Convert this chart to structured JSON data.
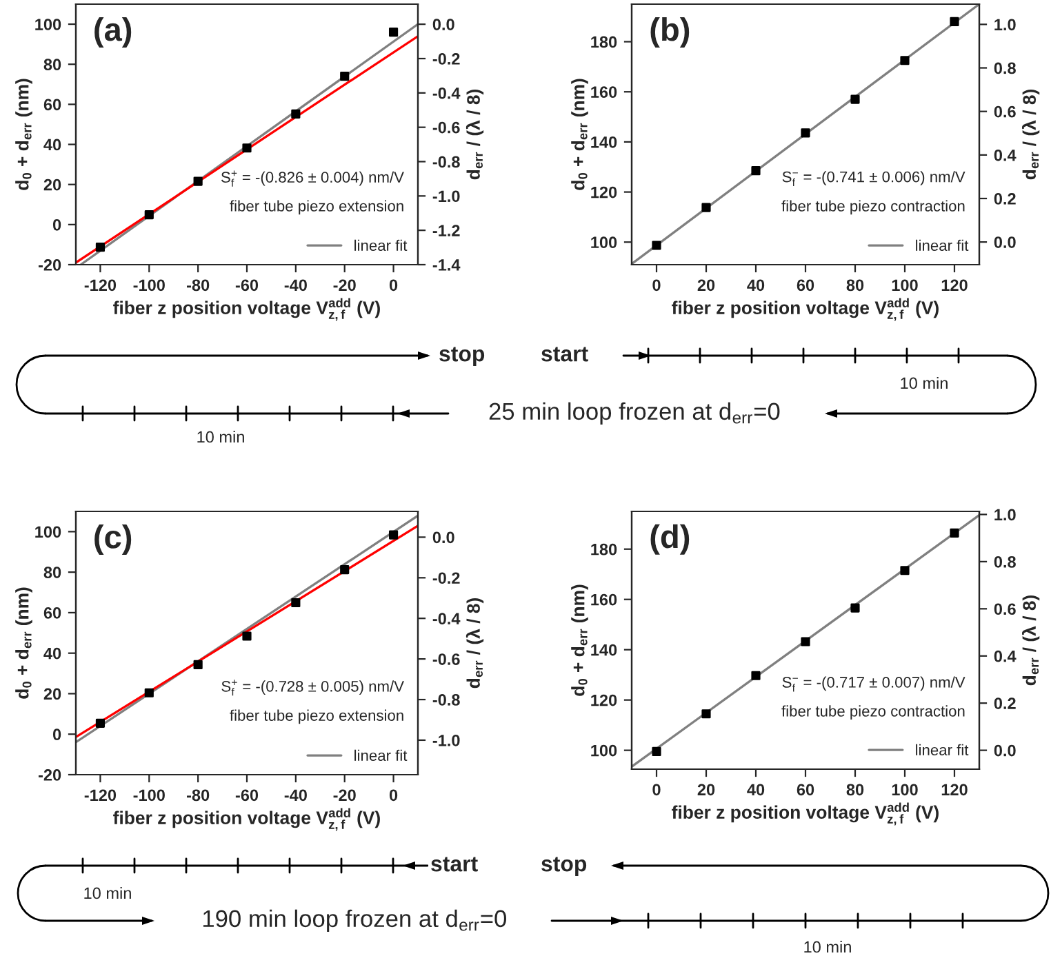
{
  "chart_data": [
    {
      "type": "scatter",
      "xlabel": "fiber z position voltage V$^{add}$$_{z,f}$ (V)",
      "ylabel": "d$_{0}$ + d$_{err}$ (nm)",
      "y2label": "d$_{err}$ / (λ / 8)",
      "annotations": [
        "(a)",
        "S$^{+}$$_{f}$ = -(0.826 ± 0.004) nm/V",
        "fiber tube piezo extension"
      ],
      "xlim": [
        -130,
        10
      ],
      "xticks": [
        -120,
        -100,
        -80,
        -60,
        -40,
        -20,
        0
      ],
      "ylim": [
        -20,
        110
      ],
      "yticks": [
        -20,
        0,
        20,
        40,
        60,
        80,
        100
      ],
      "y2lim": [
        -1.4,
        0.117
      ],
      "y2ticks": [
        -1.4,
        -1.2,
        {
          "value": -1,
          "label": "-1.0"
        },
        -0.8,
        -0.6,
        -0.4,
        -0.2,
        {
          "value": 0,
          "label": "0.0"
        }
      ],
      "legend": "bottom right",
      "series": [
        {
          "type": "scatter",
          "marker": "square",
          "color": "#000000",
          "x": [
            -120,
            -100,
            -80,
            -60,
            -40,
            -20,
            0
          ],
          "values": [
            -11.3,
            4.9,
            21.6,
            38.2,
            55.2,
            74,
            96
          ]
        },
        {
          "name": "linear fit",
          "type": "line",
          "color": "#808080",
          "x": [
            -128,
            10
          ],
          "values": [
            -20,
            100
          ]
        },
        {
          "type": "line",
          "color": "#ff0000",
          "x": [
            -130,
            10
          ],
          "values": [
            -19,
            94
          ]
        }
      ]
    },
    {
      "type": "scatter",
      "xlabel": "fiber z position voltage V$^{add}$$_{z,f}$ (V)",
      "ylabel": "d$_{0}$ + d$_{err}$ (nm)",
      "y2label": "d$_{err}$ / (λ / 8)",
      "annotations": [
        "(b)",
        "S$^{−}$$_{f}$ = -(0.741 ± 0.006) nm/V",
        "fiber tube piezo contraction"
      ],
      "xlim": [
        -10,
        130
      ],
      "xticks": [
        0,
        20,
        40,
        60,
        80,
        100,
        120
      ],
      "ylim": [
        91,
        195
      ],
      "yticks": [
        100,
        120,
        140,
        160,
        180
      ],
      "y2lim": [
        -0.104,
        1.093
      ],
      "y2ticks": [
        {
          "value": 0,
          "label": "0.0"
        },
        0.2,
        0.4,
        0.6,
        0.8,
        {
          "value": 1,
          "label": "1.0"
        }
      ],
      "legend": "bottom right",
      "series": [
        {
          "type": "scatter",
          "marker": "square",
          "color": "#000000",
          "x": [
            0,
            20,
            40,
            60,
            80,
            100,
            120
          ],
          "values": [
            98.7,
            113.8,
            128.5,
            143.6,
            157,
            172.5,
            188
          ]
        },
        {
          "name": "linear fit",
          "type": "line",
          "color": "#808080",
          "x": [
            -10,
            130
          ],
          "values": [
            91.3,
            195
          ]
        }
      ]
    },
    {
      "type": "other",
      "annotations": [
        "stop",
        "start",
        "10 min",
        "25 min loop frozen at d$_{err}$=0",
        "10 min"
      ]
    },
    {
      "type": "scatter",
      "xlabel": "fiber z position voltage V$^{add}$$_{z,f}$ (V)",
      "ylabel": "d$_{0}$ + d$_{err}$ (nm)",
      "y2label": "d$_{err}$ / (λ / 8)",
      "annotations": [
        "(c)",
        "S$^{+}$$_{f}$ = -(0.728 ± 0.005) nm/V",
        "fiber tube piezo extension"
      ],
      "xlim": [
        -130,
        10
      ],
      "xticks": [
        -120,
        -100,
        -80,
        -60,
        -40,
        -20,
        0
      ],
      "ylim": [
        -20,
        110
      ],
      "yticks": [
        -20,
        0,
        20,
        40,
        60,
        80,
        100
      ],
      "y2lim": [
        -1.17,
        0.127
      ],
      "y2ticks": [
        {
          "value": -1,
          "label": "-1.0"
        },
        -0.8,
        -0.6,
        -0.4,
        -0.2,
        {
          "value": 0,
          "label": "0.0"
        }
      ],
      "legend": "bottom right",
      "series": [
        {
          "type": "scatter",
          "marker": "square",
          "color": "#000000",
          "x": [
            -120,
            -100,
            -80,
            -60,
            -40,
            -20,
            0
          ],
          "values": [
            5.4,
            20.4,
            34.3,
            48.4,
            64.9,
            81.2,
            98.4
          ]
        },
        {
          "name": "linear fit",
          "type": "line",
          "color": "#808080",
          "x": [
            -130,
            10
          ],
          "values": [
            -4,
            107.9
          ]
        },
        {
          "type": "line",
          "color": "#ff0000",
          "x": [
            -130,
            10
          ],
          "values": [
            -1.4,
            102.9
          ]
        }
      ]
    },
    {
      "type": "scatter",
      "xlabel": "fiber z position voltage V$^{add}$$_{z,f}$ (V)",
      "ylabel": "d$_{0}$ + d$_{err}$ (nm)",
      "y2label": "d$_{err}$ / (λ / 8)",
      "annotations": [
        "(d)",
        "S$^{−}$$_{f}$ = -(0.717 ± 0.007) nm/V",
        "fiber tube piezo contraction"
      ],
      "xlim": [
        -10,
        130
      ],
      "xticks": [
        0,
        20,
        40,
        60,
        80,
        100,
        120
      ],
      "ylim": [
        92.5,
        195
      ],
      "yticks": [
        100,
        120,
        140,
        160,
        180
      ],
      "y2lim": [
        -0.08,
        1.013
      ],
      "y2ticks": [
        {
          "value": 0,
          "label": "0.0"
        },
        0.2,
        0.4,
        0.6,
        0.8,
        {
          "value": 1,
          "label": "1.0"
        }
      ],
      "legend": "bottom right",
      "series": [
        {
          "type": "scatter",
          "marker": "square",
          "color": "#000000",
          "x": [
            0,
            20,
            40,
            60,
            80,
            100,
            120
          ],
          "values": [
            99.5,
            114.5,
            129.7,
            143.2,
            156.6,
            171.5,
            186.4
          ]
        },
        {
          "name": "linear fit",
          "type": "line",
          "color": "#808080",
          "x": [
            -10,
            130
          ],
          "values": [
            93.5,
            193.5
          ]
        }
      ]
    },
    {
      "type": "other",
      "annotations": [
        "start",
        "stop",
        "10 min",
        "190 min loop frozen at d$_{err}$=0",
        "10 min"
      ]
    }
  ]
}
